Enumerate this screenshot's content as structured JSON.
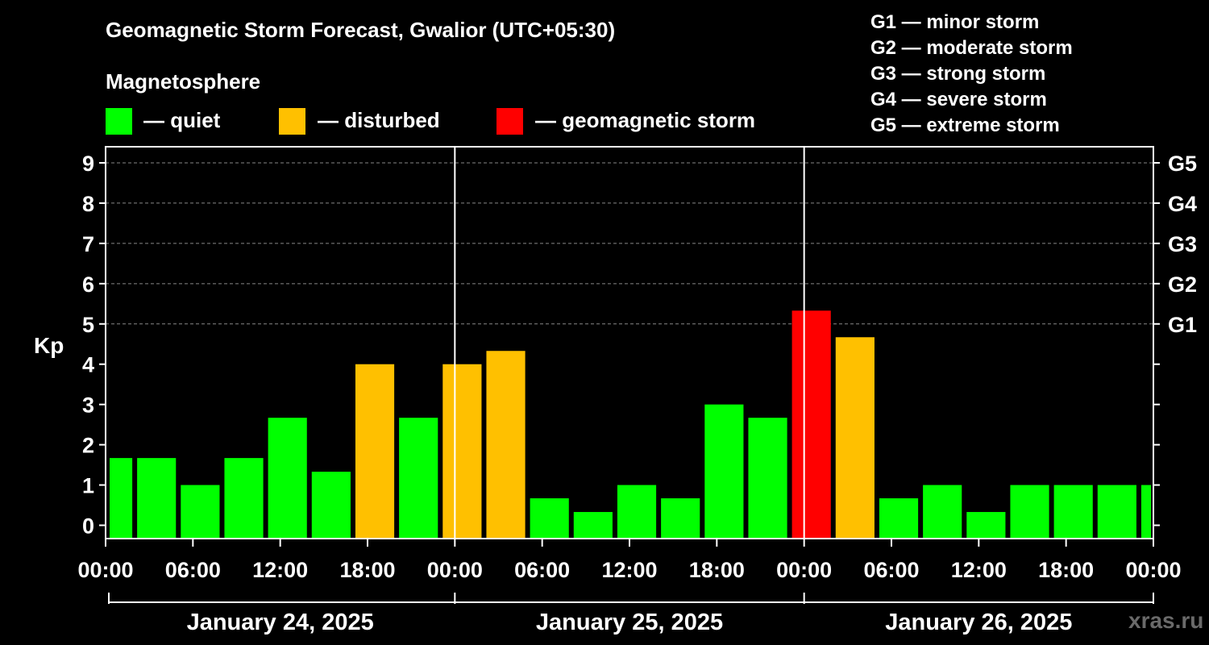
{
  "header": {
    "title": "Geomagnetic Storm Forecast, Gwalior (UTC+05:30)",
    "subtitle": "Magnetosphere",
    "legend": [
      {
        "label": "— quiet",
        "color": "#00ff00"
      },
      {
        "label": "— disturbed",
        "color": "#ffc000"
      },
      {
        "label": "— geomagnetic storm",
        "color": "#ff0000"
      }
    ]
  },
  "storm_scale": [
    "G1 — minor storm",
    "G2 — moderate storm",
    "G3 — strong storm",
    "G4 — severe storm",
    "G5 — extreme storm"
  ],
  "credit": "xras.ru",
  "colors": {
    "quiet": "#00ff00",
    "disturbed": "#ffc000",
    "storm": "#ff0000",
    "background": "#000000",
    "axes": "#ffffff",
    "grid": "#888888"
  },
  "chart_data": {
    "type": "bar",
    "title": "Geomagnetic Storm Forecast, Gwalior (UTC+05:30)",
    "ylabel": "Kp",
    "ylim": [
      -0.33,
      9.4
    ],
    "yticks": [
      0,
      1,
      2,
      3,
      4,
      5,
      6,
      7,
      8,
      9
    ],
    "right_ticks": [
      {
        "value": 5,
        "label": "G1"
      },
      {
        "value": 6,
        "label": "G2"
      },
      {
        "value": 7,
        "label": "G3"
      },
      {
        "value": 8,
        "label": "G4"
      },
      {
        "value": 9,
        "label": "G5"
      }
    ],
    "grid_y": [
      5,
      6,
      7,
      8,
      9
    ],
    "x_unit": "hours",
    "x_range": [
      0,
      72
    ],
    "xticks": [
      {
        "hour": 0,
        "label": "00:00"
      },
      {
        "hour": 6,
        "label": "06:00"
      },
      {
        "hour": 12,
        "label": "12:00"
      },
      {
        "hour": 18,
        "label": "18:00"
      },
      {
        "hour": 24,
        "label": "00:00"
      },
      {
        "hour": 30,
        "label": "06:00"
      },
      {
        "hour": 36,
        "label": "12:00"
      },
      {
        "hour": 42,
        "label": "18:00"
      },
      {
        "hour": 48,
        "label": "00:00"
      },
      {
        "hour": 54,
        "label": "06:00"
      },
      {
        "hour": 60,
        "label": "12:00"
      },
      {
        "hour": 66,
        "label": "18:00"
      },
      {
        "hour": 72,
        "label": "00:00"
      }
    ],
    "day_dividers": [
      24,
      48
    ],
    "days": [
      {
        "label": "January 24, 2025",
        "start_hour": 0,
        "end_hour": 24
      },
      {
        "label": "January 25, 2025",
        "start_hour": 24,
        "end_hour": 48
      },
      {
        "label": "January 26, 2025",
        "start_hour": 48,
        "end_hour": 72
      }
    ],
    "bars": [
      {
        "start_hour": 0,
        "end_hour": 2,
        "kp": 1.67,
        "level": "quiet"
      },
      {
        "start_hour": 2,
        "end_hour": 5,
        "kp": 1.67,
        "level": "quiet"
      },
      {
        "start_hour": 5,
        "end_hour": 8,
        "kp": 1.0,
        "level": "quiet"
      },
      {
        "start_hour": 8,
        "end_hour": 11,
        "kp": 1.67,
        "level": "quiet"
      },
      {
        "start_hour": 11,
        "end_hour": 14,
        "kp": 2.67,
        "level": "quiet"
      },
      {
        "start_hour": 14,
        "end_hour": 17,
        "kp": 1.33,
        "level": "quiet"
      },
      {
        "start_hour": 17,
        "end_hour": 20,
        "kp": 4.0,
        "level": "disturbed"
      },
      {
        "start_hour": 20,
        "end_hour": 23,
        "kp": 2.67,
        "level": "quiet"
      },
      {
        "start_hour": 23,
        "end_hour": 26,
        "kp": 4.0,
        "level": "disturbed"
      },
      {
        "start_hour": 26,
        "end_hour": 29,
        "kp": 4.33,
        "level": "disturbed"
      },
      {
        "start_hour": 29,
        "end_hour": 32,
        "kp": 0.67,
        "level": "quiet"
      },
      {
        "start_hour": 32,
        "end_hour": 35,
        "kp": 0.33,
        "level": "quiet"
      },
      {
        "start_hour": 35,
        "end_hour": 38,
        "kp": 1.0,
        "level": "quiet"
      },
      {
        "start_hour": 38,
        "end_hour": 41,
        "kp": 0.67,
        "level": "quiet"
      },
      {
        "start_hour": 41,
        "end_hour": 44,
        "kp": 3.0,
        "level": "quiet"
      },
      {
        "start_hour": 44,
        "end_hour": 47,
        "kp": 2.67,
        "level": "quiet"
      },
      {
        "start_hour": 47,
        "end_hour": 50,
        "kp": 5.33,
        "level": "storm"
      },
      {
        "start_hour": 50,
        "end_hour": 53,
        "kp": 4.67,
        "level": "disturbed"
      },
      {
        "start_hour": 53,
        "end_hour": 56,
        "kp": 0.67,
        "level": "quiet"
      },
      {
        "start_hour": 56,
        "end_hour": 59,
        "kp": 1.0,
        "level": "quiet"
      },
      {
        "start_hour": 59,
        "end_hour": 62,
        "kp": 0.33,
        "level": "quiet"
      },
      {
        "start_hour": 62,
        "end_hour": 65,
        "kp": 1.0,
        "level": "quiet"
      },
      {
        "start_hour": 65,
        "end_hour": 68,
        "kp": 1.0,
        "level": "quiet"
      },
      {
        "start_hour": 68,
        "end_hour": 71,
        "kp": 1.0,
        "level": "quiet"
      },
      {
        "start_hour": 71,
        "end_hour": 72,
        "kp": 1.0,
        "level": "quiet"
      }
    ]
  }
}
